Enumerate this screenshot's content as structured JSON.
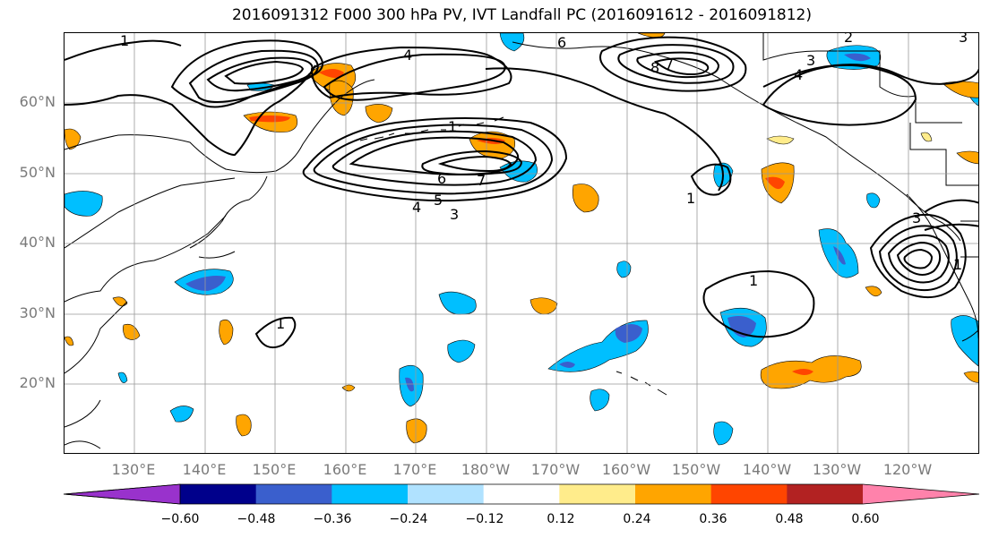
{
  "title": "2016091312 F000 300 hPa PV, IVT Landfall PC (2016091612 - 2016091812)",
  "lat_labels": [
    "60°N",
    "50°N",
    "40°N",
    "30°N",
    "20°N"
  ],
  "lon_labels": [
    "130°E",
    "140°E",
    "150°E",
    "160°E",
    "170°E",
    "180°W",
    "170°W",
    "160°W",
    "150°W",
    "140°W",
    "130°W",
    "120°W"
  ],
  "contour_labels": [
    "1",
    "1",
    "1",
    "1",
    "1",
    "1",
    "2",
    "3",
    "3",
    "3",
    "4",
    "4",
    "5",
    "6",
    "6",
    "7",
    "8",
    "7",
    "4",
    "3"
  ],
  "colorbar": {
    "colors": [
      "#9932CC",
      "#00008B",
      "#3A5FCD",
      "#00BFFF",
      "#B0E2FF",
      "#FFFFFF",
      "#FFEC8B",
      "#FFA500",
      "#FF4500",
      "#B22222",
      "#FF82AB"
    ],
    "tick_labels": [
      "−0.60",
      "−0.48",
      "−0.36",
      "−0.24",
      "−0.12",
      "0.12",
      "0.24",
      "0.36",
      "0.48",
      "0.60"
    ]
  }
}
